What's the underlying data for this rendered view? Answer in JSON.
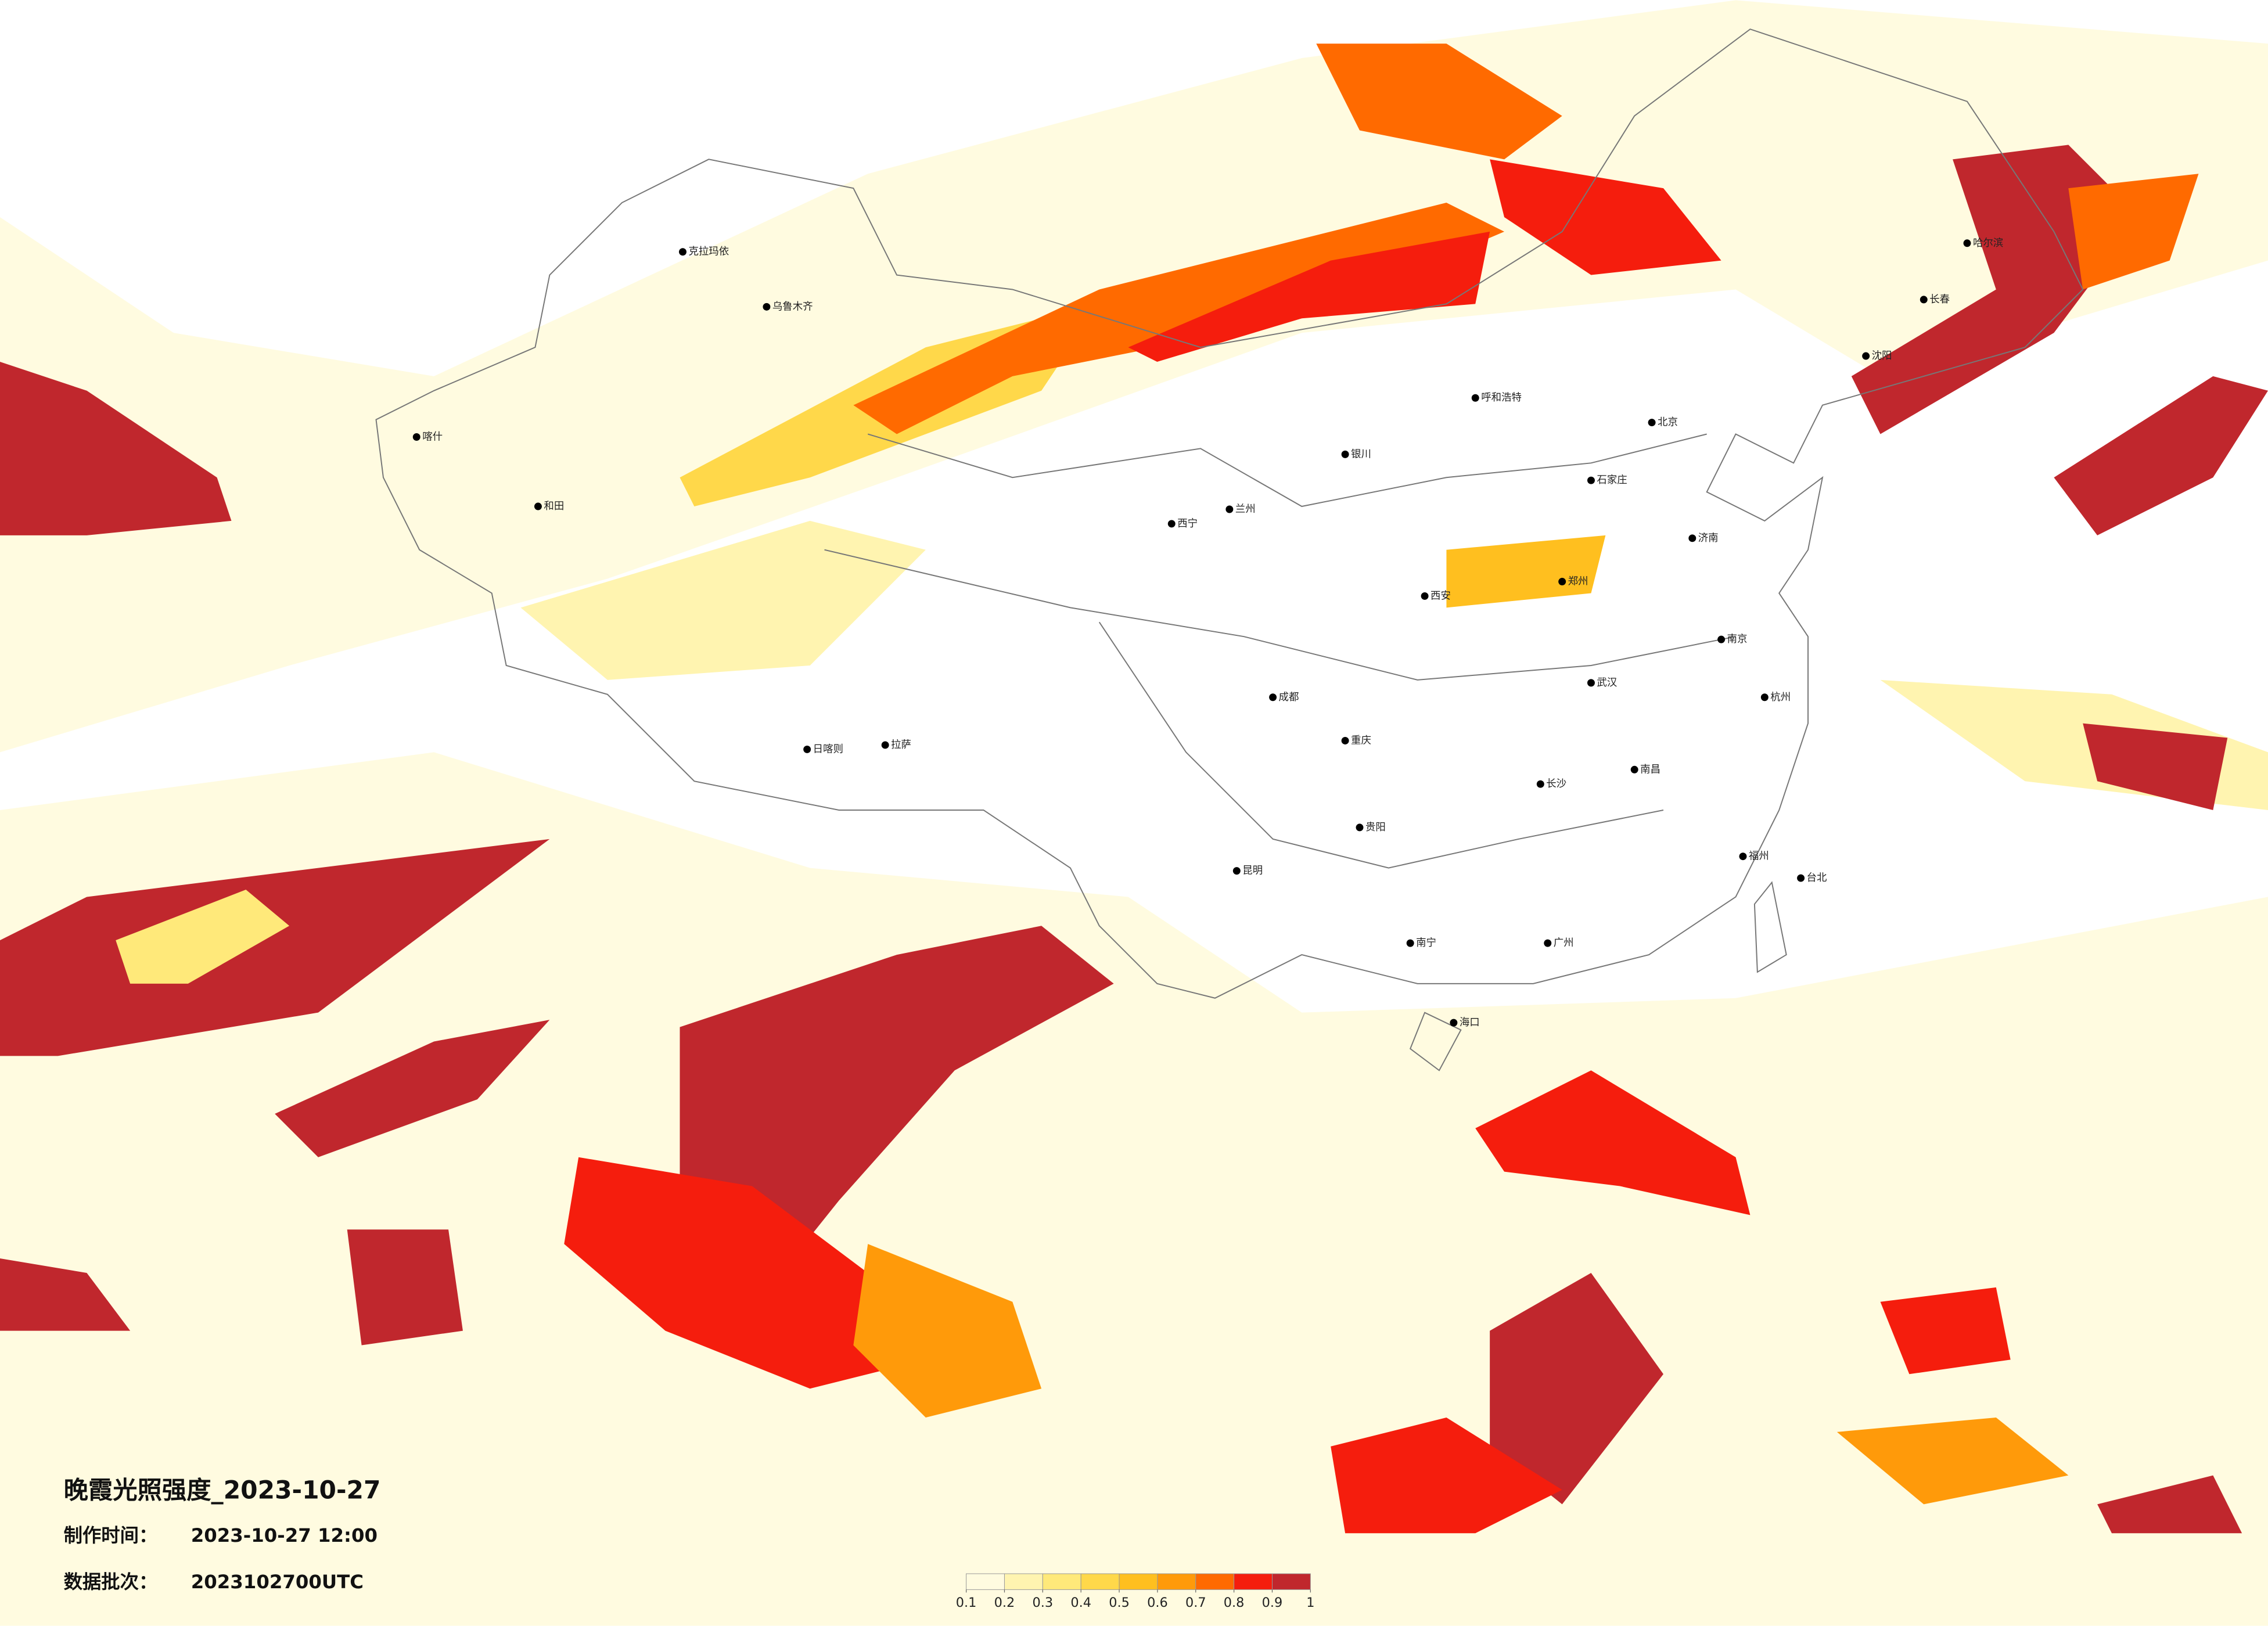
{
  "title": "晚霞光照强度_2023-10-27",
  "made_label": "制作时间：",
  "made_time": "2023-10-27 12:00",
  "batch_label": "数据批次：",
  "batch": "2023102700UTC",
  "colorbar": {
    "ticks": [
      0.1,
      0.2,
      0.3,
      0.4,
      0.5,
      0.6,
      0.7,
      0.8,
      0.9,
      1
    ],
    "colors": [
      "#fffbe0",
      "#fff4b0",
      "#ffe97a",
      "#ffd84a",
      "#ffbf1f",
      "#ff9a0a",
      "#ff6a00",
      "#f51d0d",
      "#c0272d"
    ]
  },
  "cities": [
    "哈尔滨",
    "长春",
    "沈阳",
    "北京",
    "石家庄",
    "济南",
    "郑州",
    "西安",
    "兰州",
    "成都",
    "重庆",
    "贵阳",
    "昆明",
    "南宁",
    "长沙",
    "武汉",
    "南昌",
    "杭州",
    "南京",
    "福州",
    "广州",
    "海口",
    "拉萨",
    "乌鲁木齐",
    "呼和浩特",
    "银川",
    "西宁",
    "台北",
    "克拉玛依",
    "喀什",
    "和田",
    "日喀则"
  ]
}
